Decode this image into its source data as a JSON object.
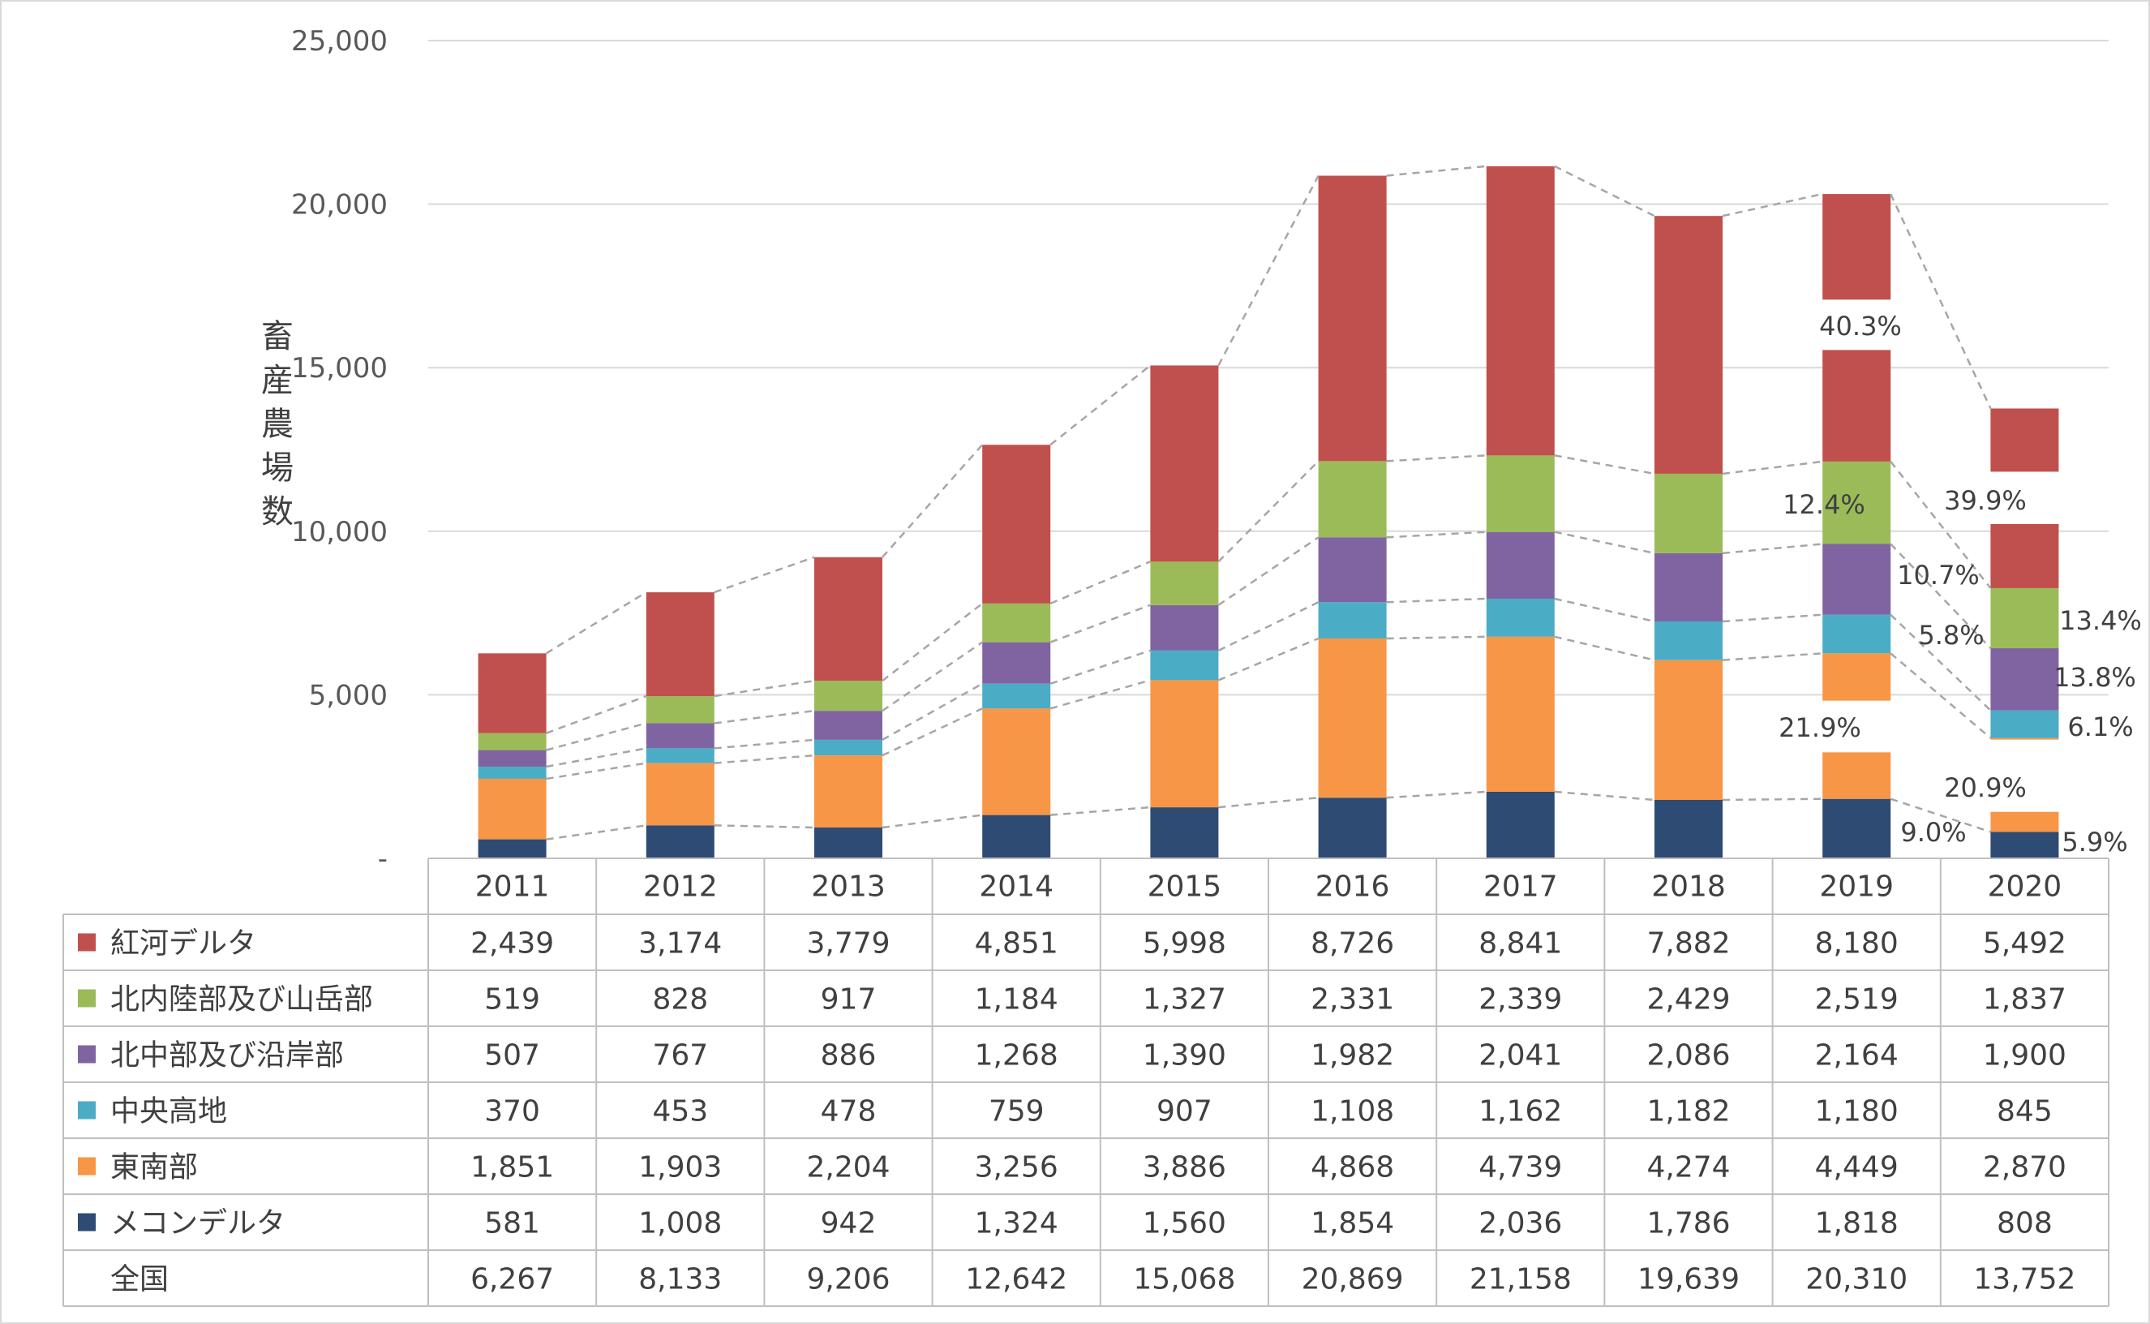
{
  "chart_data": {
    "type": "bar",
    "stacked": true,
    "title": "",
    "ylabel": "畜産農場数",
    "ylim": [
      0,
      25000
    ],
    "yticks": [
      "-",
      "5,000",
      "10,000",
      "15,000",
      "20,000",
      "25,000"
    ],
    "ytick_values": [
      0,
      5000,
      10000,
      15000,
      20000,
      25000
    ],
    "grid": true,
    "categories": [
      "2011",
      "2012",
      "2013",
      "2014",
      "2015",
      "2016",
      "2017",
      "2018",
      "2019",
      "2020"
    ],
    "series": [
      {
        "name": "メコンデルタ",
        "color": "#2e4b73",
        "values": [
          581,
          1008,
          942,
          1324,
          1560,
          1854,
          2036,
          1786,
          1818,
          808
        ],
        "display": [
          "581",
          "1,008",
          "942",
          "1,324",
          "1,560",
          "1,854",
          "2,036",
          "1,786",
          "1,818",
          "808"
        ]
      },
      {
        "name": "東南部",
        "color": "#f79646",
        "values": [
          1851,
          1903,
          2204,
          3256,
          3886,
          4868,
          4739,
          4274,
          4449,
          2870
        ],
        "display": [
          "1,851",
          "1,903",
          "2,204",
          "3,256",
          "3,886",
          "4,868",
          "4,739",
          "4,274",
          "4,449",
          "2,870"
        ]
      },
      {
        "name": "中央高地",
        "color": "#4bacc6",
        "values": [
          370,
          453,
          478,
          759,
          907,
          1108,
          1162,
          1182,
          1180,
          845
        ],
        "display": [
          "370",
          "453",
          "478",
          "759",
          "907",
          "1,108",
          "1,162",
          "1,182",
          "1,180",
          "845"
        ]
      },
      {
        "name": "北中部及び沿岸部",
        "color": "#8064a2",
        "values": [
          507,
          767,
          886,
          1268,
          1390,
          1982,
          2041,
          2086,
          2164,
          1900
        ],
        "display": [
          "507",
          "767",
          "886",
          "1,268",
          "1,390",
          "1,982",
          "2,041",
          "2,086",
          "2,164",
          "1,900"
        ]
      },
      {
        "name": "北内陸部及び山岳部",
        "color": "#9bbb59",
        "values": [
          519,
          828,
          917,
          1184,
          1327,
          2331,
          2339,
          2429,
          2519,
          1837
        ],
        "display": [
          "519",
          "828",
          "917",
          "1,184",
          "1,327",
          "2,331",
          "2,339",
          "2,429",
          "2,519",
          "1,837"
        ]
      },
      {
        "name": "紅河デルタ",
        "color": "#c0504d",
        "values": [
          2439,
          3174,
          3779,
          4851,
          5998,
          8726,
          8841,
          7882,
          8180,
          5492
        ],
        "display": [
          "2,439",
          "3,174",
          "3,779",
          "4,851",
          "5,998",
          "8,726",
          "8,841",
          "7,882",
          "8,180",
          "5,492"
        ]
      }
    ],
    "total": {
      "name": "全国",
      "values": [
        6267,
        8133,
        9206,
        12642,
        15068,
        20869,
        21158,
        19639,
        20310,
        13752
      ],
      "display": [
        "6,267",
        "8,133",
        "9,206",
        "12,642",
        "15,068",
        "20,869",
        "21,158",
        "19,639",
        "20,310",
        "13,752"
      ]
    },
    "share_labels": {
      "2019": [
        "9.0%",
        "21.9%",
        "5.8%",
        "10.7%",
        "12.4%",
        "40.3%"
      ],
      "2020": [
        "5.9%",
        "20.9%",
        "6.1%",
        "13.8%",
        "13.4%",
        "39.9%"
      ]
    },
    "table_row_order": [
      "紅河デルタ",
      "北内陸部及び山岳部",
      "北中部及び沿岸部",
      "中央高地",
      "東南部",
      "メコンデルタ",
      "全国"
    ]
  }
}
